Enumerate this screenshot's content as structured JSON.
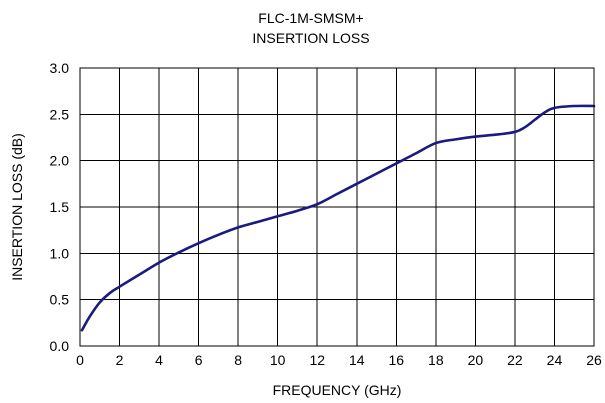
{
  "chart_data": {
    "type": "line",
    "title": "FLC-1M-SMSM+",
    "subtitle": "INSERTION LOSS",
    "xlabel": "FREQUENCY (GHz)",
    "ylabel": "INSERTION LOSS (dB)",
    "xlim": [
      0,
      26
    ],
    "ylim": [
      0,
      3.0
    ],
    "x_ticks": [
      0,
      2,
      4,
      6,
      8,
      10,
      12,
      14,
      16,
      18,
      20,
      22,
      24,
      26
    ],
    "y_ticks": [
      "0.0",
      "0.5",
      "1.0",
      "1.5",
      "2.0",
      "2.5",
      "3.0"
    ],
    "x_tick_labels": [
      "0",
      "2",
      "4",
      "6",
      "8",
      "10",
      "12",
      "14",
      "16",
      "18",
      "20",
      "22",
      "24",
      "26"
    ],
    "grid": true,
    "legend": "none",
    "series_color": "#1a1a80",
    "series": [
      {
        "x": [
          0.1,
          0.5,
          1,
          1.5,
          2,
          3,
          4,
          5,
          6,
          7,
          8,
          9,
          10,
          11,
          12,
          13,
          14,
          15,
          16,
          17,
          18,
          19,
          20,
          21,
          22,
          22.5,
          23,
          23.5,
          24,
          25,
          26
        ],
        "values": [
          0.17,
          0.32,
          0.47,
          0.57,
          0.64,
          0.77,
          0.9,
          1.01,
          1.11,
          1.2,
          1.28,
          1.34,
          1.4,
          1.46,
          1.53,
          1.64,
          1.75,
          1.86,
          1.97,
          2.08,
          2.19,
          2.23,
          2.26,
          2.28,
          2.31,
          2.36,
          2.44,
          2.52,
          2.57,
          2.59,
          2.59
        ]
      }
    ]
  }
}
